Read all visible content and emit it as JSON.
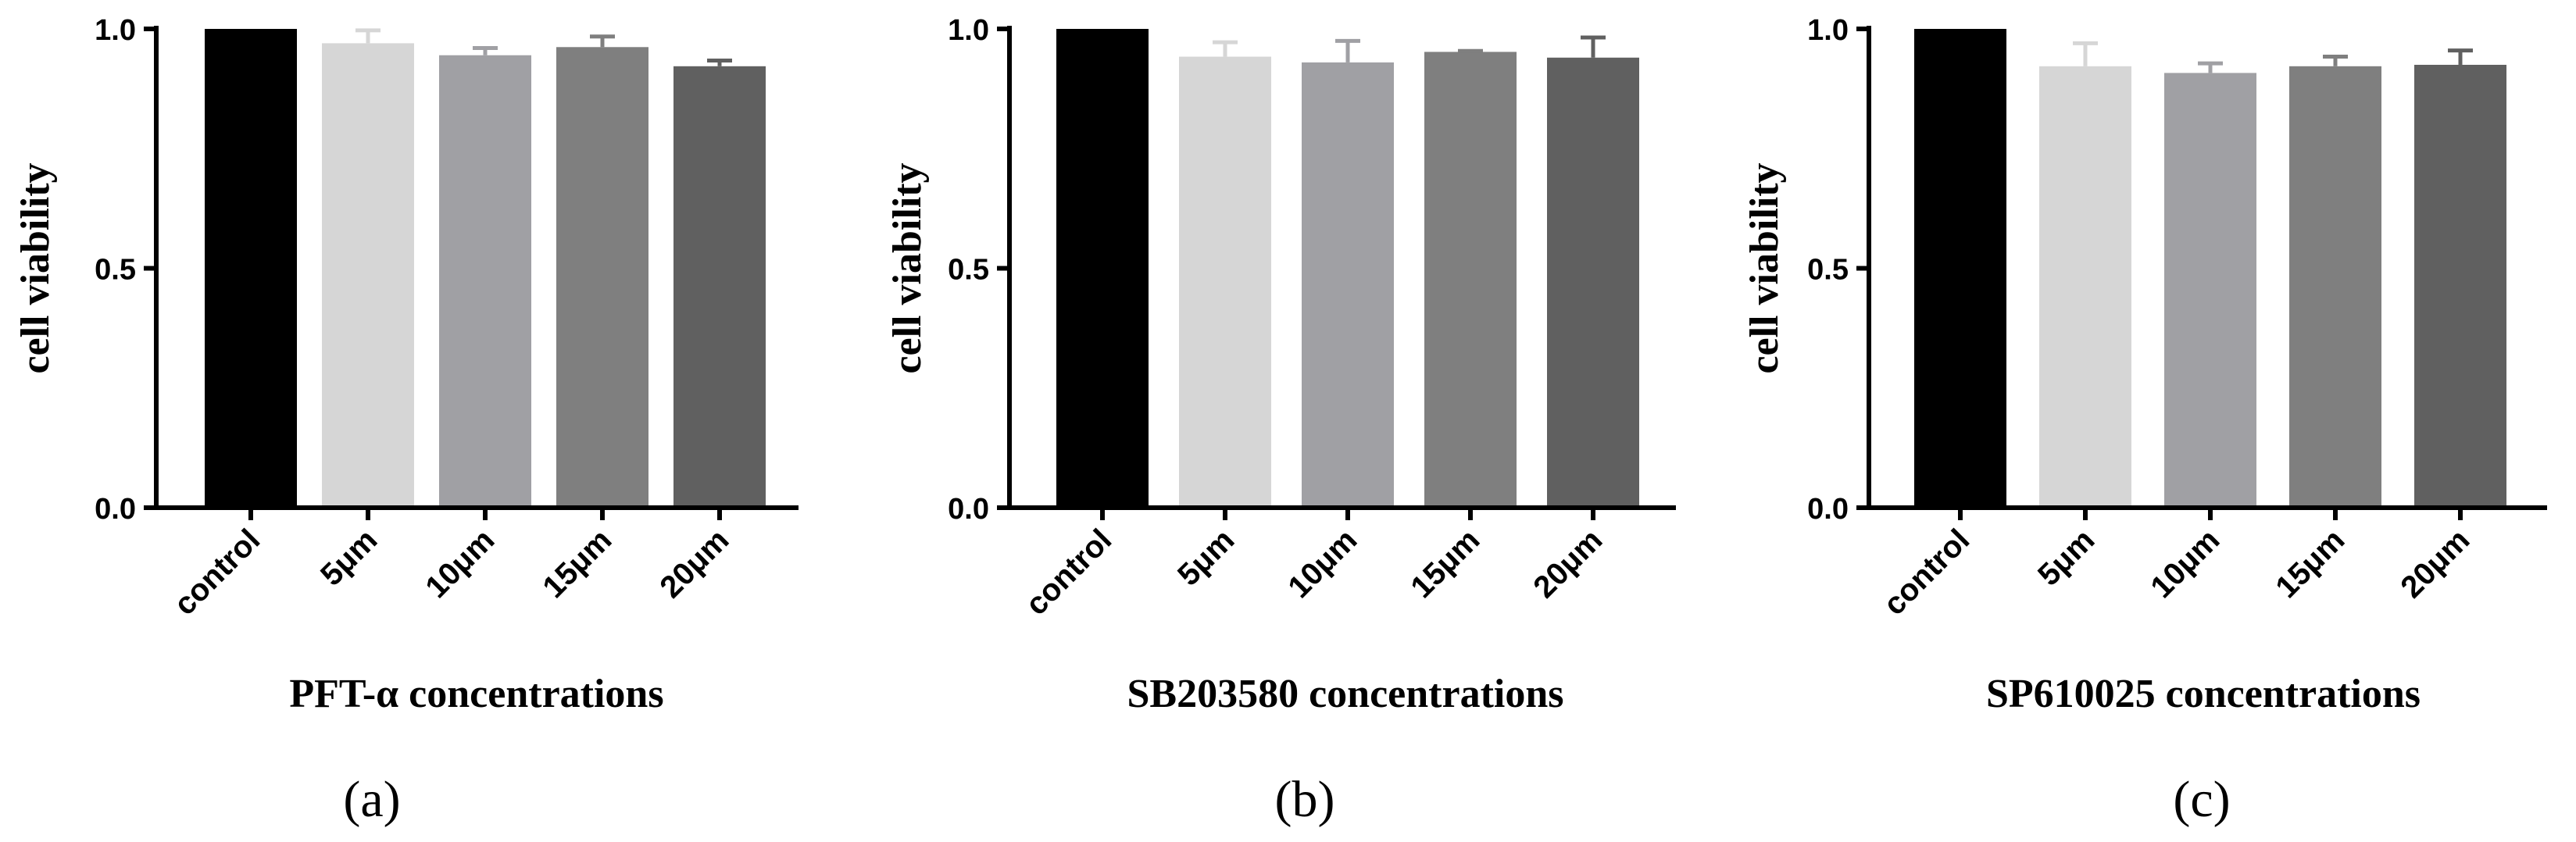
{
  "chart_data": [
    {
      "type": "bar",
      "panel_label": "(a)",
      "xlabel": "PFT-α concentrations",
      "ylabel": "cell viability",
      "ylim": [
        0,
        1.0
      ],
      "yticks": [
        "0.0",
        "0.5",
        "1.0"
      ],
      "categories": [
        "control",
        "5μm",
        "10μm",
        "15μm",
        "20μm"
      ],
      "values": [
        1.0,
        0.97,
        0.945,
        0.962,
        0.922
      ],
      "errors": [
        0.0,
        0.027,
        0.015,
        0.022,
        0.012
      ],
      "colors": [
        "#000000",
        "#d6d6d6",
        "#a0a0a4",
        "#7f7f7f",
        "#606060"
      ]
    },
    {
      "type": "bar",
      "panel_label": "(b)",
      "xlabel": "SB203580 concentrations",
      "ylabel": "cell viability",
      "ylim": [
        0,
        1.0
      ],
      "yticks": [
        "0.0",
        "0.5",
        "1.0"
      ],
      "categories": [
        "control",
        "5μm",
        "10μm",
        "15μm",
        "20μm"
      ],
      "values": [
        1.0,
        0.942,
        0.93,
        0.952,
        0.94
      ],
      "errors": [
        0.0,
        0.03,
        0.045,
        0.002,
        0.042
      ],
      "colors": [
        "#000000",
        "#d6d6d6",
        "#a0a0a4",
        "#7f7f7f",
        "#606060"
      ]
    },
    {
      "type": "bar",
      "panel_label": "(c)",
      "xlabel": "SP610025 concentrations",
      "ylabel": "cell viability",
      "ylim": [
        0,
        1.0
      ],
      "yticks": [
        "0.0",
        "0.5",
        "1.0"
      ],
      "categories": [
        "control",
        "5μm",
        "10μm",
        "15μm",
        "20μm"
      ],
      "values": [
        1.0,
        0.922,
        0.908,
        0.922,
        0.925
      ],
      "errors": [
        0.0,
        0.048,
        0.02,
        0.02,
        0.03
      ],
      "colors": [
        "#000000",
        "#d6d6d6",
        "#a0a0a4",
        "#7f7f7f",
        "#606060"
      ]
    }
  ]
}
